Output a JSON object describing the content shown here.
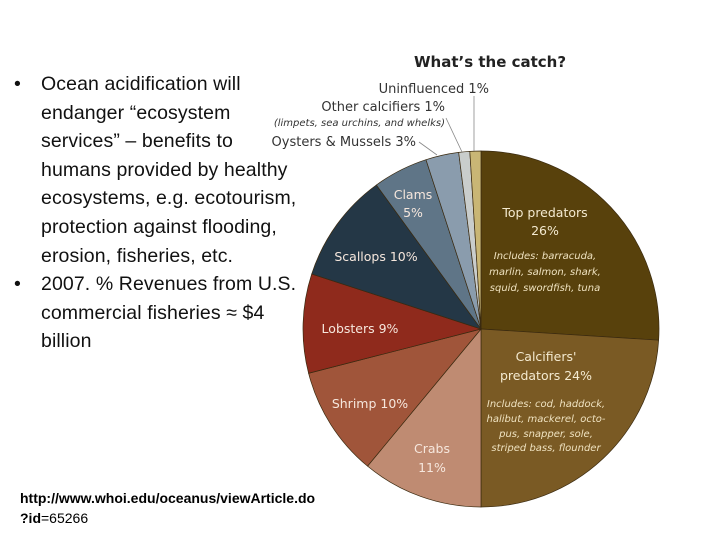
{
  "slide": {
    "bullets": [
      {
        "marker": "•",
        "text": "Ocean acidification will endanger “ecosystem services” – benefits to humans provided by healthy ecosystems, e.g. ecotourism, protection against flooding, erosion, fisheries, etc."
      },
      {
        "marker": "•",
        "text": "2007. % Revenues from U.S. commercial fisheries ≈ $4 billion"
      }
    ],
    "source": {
      "line1": "http://www.whoi.edu/oceanus/viewArticle.do",
      "line2_prefix": "?id",
      "line2_rest": "=65266"
    }
  },
  "chart_data": {
    "type": "pie",
    "title": "What’s the catch?",
    "start_angle": "12 o'clock",
    "direction": "clockwise",
    "categories": [
      "Top predators",
      "Calcifiers' predators",
      "Crabs",
      "Shrimp",
      "Lobsters",
      "Scallops",
      "Clams",
      "Oysters & Mussels",
      "Other calcifiers",
      "Uninfluenced"
    ],
    "values": [
      26,
      24,
      11,
      10,
      9,
      10,
      5,
      3,
      1,
      1
    ],
    "unit": "%",
    "colors": [
      "#58410c",
      "#7a5a24",
      "#bf8b72",
      "#a0553a",
      "#8f2a1c",
      "#243746",
      "#5f7587",
      "#8a9cad",
      "#c9cdcc",
      "#c9b675"
    ],
    "labels": {
      "top_predators": {
        "name": "Top predators",
        "pct": "26%",
        "note": [
          "Includes: barracuda,",
          "marlin, salmon, shark,",
          "squid, swordfish, tuna"
        ]
      },
      "calcifiers_predators": {
        "name_line1": "Calcifiers'",
        "name_line2": "predators 24%",
        "note": [
          "Includes: cod, haddock,",
          "halibut, mackerel, octo-",
          "pus, snapper, sole,",
          "striped bass, flounder"
        ]
      },
      "crabs": {
        "name": "Crabs",
        "pct": "11%"
      },
      "shrimp": {
        "text": "Shrimp 10%"
      },
      "lobsters": {
        "text": "Lobsters 9%"
      },
      "scallops": {
        "text": "Scallops 10%"
      },
      "clams": {
        "name": "Clams",
        "pct": "5%"
      },
      "oysters": {
        "text": "Oysters & Mussels 3%"
      },
      "other_calcifiers": {
        "text": "Other calcifiers 1%",
        "note": "(limpets, sea urchins, and whelks)"
      },
      "uninfluenced": {
        "text": "Uninfluenced 1%"
      }
    },
    "legend": "none (callout labels)"
  }
}
